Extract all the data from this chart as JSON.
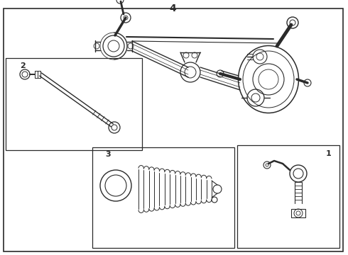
{
  "bg_color": "#ffffff",
  "line_color": "#2a2a2a",
  "fig_width": 4.9,
  "fig_height": 3.6,
  "dpi": 100,
  "title": "4",
  "label_1": "1",
  "label_2": "2",
  "label_3": "3"
}
